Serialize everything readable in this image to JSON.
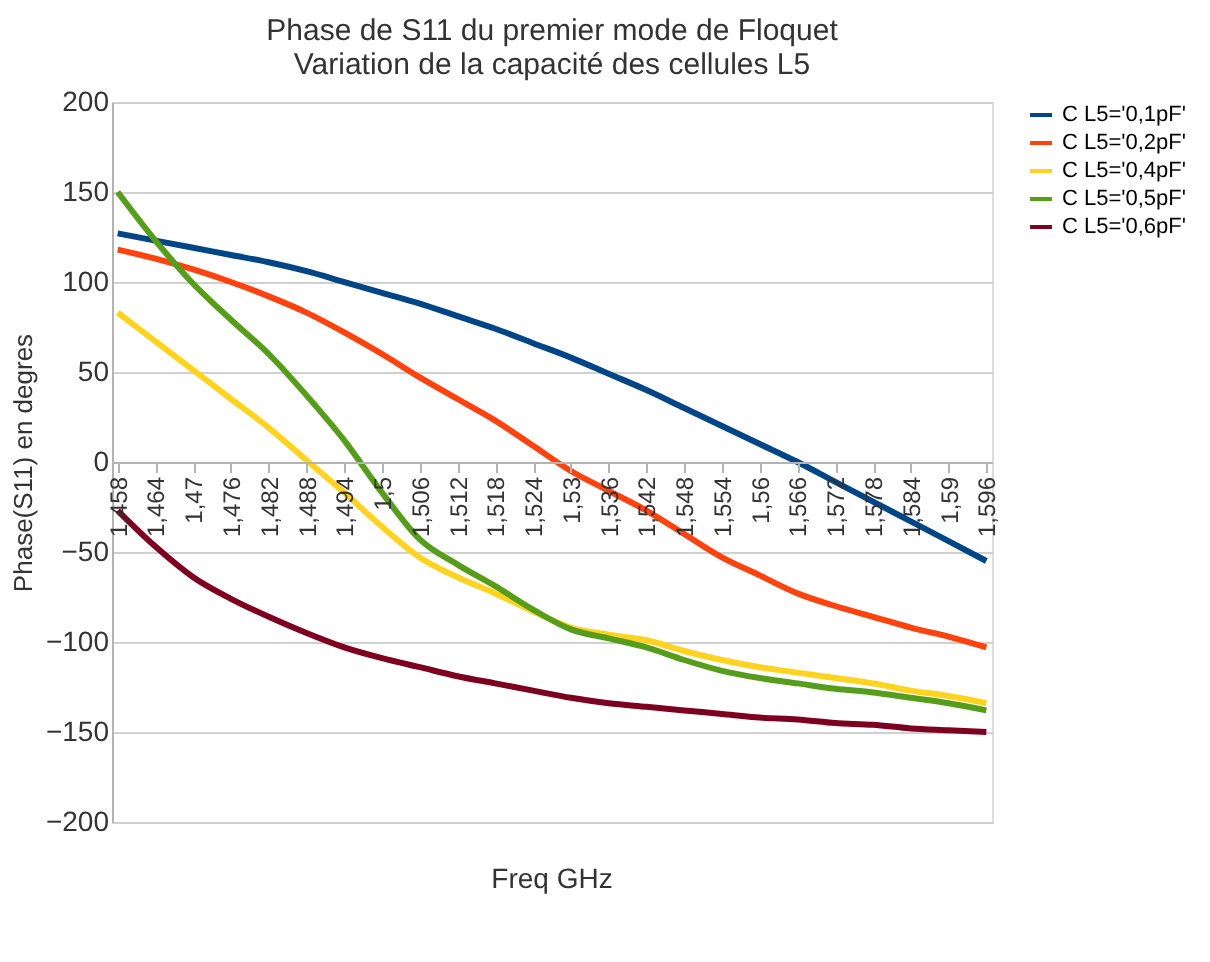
{
  "chart_data": {
    "type": "line",
    "title": "Phase de S11 du premier mode de Floquet",
    "subtitle": "Variation de la capacité des cellules L5",
    "xlabel": "Freq GHz",
    "ylabel": "Phase(S11) en degres",
    "categories": [
      "1,458",
      "1,464",
      "1,47",
      "1,476",
      "1,482",
      "1,488",
      "1,494",
      "1,5",
      "1,506",
      "1,512",
      "1,518",
      "1,524",
      "1,53",
      "1,536",
      "1,542",
      "1,548",
      "1,554",
      "1,56",
      "1,566",
      "1,572",
      "1,578",
      "1,584",
      "1,59",
      "1,596"
    ],
    "series": [
      {
        "name": "C L5='0,1pF'",
        "color": "#004586",
        "values": [
          127,
          123,
          119,
          115,
          111,
          106,
          100,
          94,
          88,
          81,
          74,
          66,
          58,
          49,
          40,
          30,
          20,
          10,
          0,
          -11,
          -22,
          -33,
          -44,
          -55
        ]
      },
      {
        "name": "C L5='0,2pF'",
        "color": "#ff420e",
        "values": [
          118,
          113,
          107,
          100,
          92,
          83,
          72,
          60,
          47,
          35,
          23,
          9,
          -5,
          -16,
          -27,
          -40,
          -53,
          -63,
          -73,
          -80,
          -86,
          -92,
          -97,
          -103
        ]
      },
      {
        "name": "C L5='0,4pF'",
        "color": "#ffd320",
        "values": [
          83,
          67,
          51,
          35,
          19,
          1,
          -17,
          -36,
          -53,
          -64,
          -73,
          -83,
          -92,
          -96,
          -99,
          -105,
          -110,
          -114,
          -117,
          -120,
          -123,
          -127,
          -130,
          -134
        ]
      },
      {
        "name": "C L5='0,5pF'",
        "color": "#579d1c",
        "values": [
          150,
          123,
          99,
          79,
          60,
          37,
          12,
          -17,
          -43,
          -57,
          -69,
          -82,
          -93,
          -98,
          -103,
          -110,
          -116,
          -120,
          -123,
          -126,
          -128,
          -131,
          -134,
          -138
        ]
      },
      {
        "name": "C L5='0,6pF'",
        "color": "#7e0021",
        "values": [
          -27,
          -47,
          -64,
          -76,
          -86,
          -95,
          -103,
          -109,
          -114,
          -119,
          -123,
          -127,
          -131,
          -134,
          -136,
          -138,
          -140,
          -142,
          -143,
          -145,
          -146,
          -148,
          -149,
          -150
        ]
      }
    ],
    "ylim": [
      -200,
      200
    ],
    "yticks": [
      -200,
      -150,
      -100,
      -50,
      0,
      50,
      100,
      150,
      200
    ],
    "grid": "y",
    "legend": "right",
    "marker": "none",
    "line_style": "solid"
  }
}
